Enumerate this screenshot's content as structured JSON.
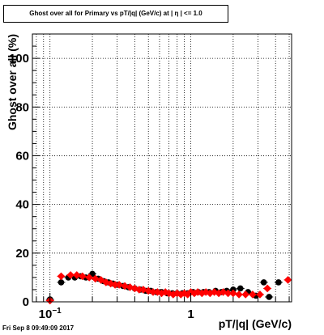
{
  "timestamp": "Fri Sep  8 09:49:09 2017",
  "chart_data": {
    "type": "scatter",
    "title": "Ghost over all for Primary vs pT/|q| (GeV/c) at |  η | <= 1.0",
    "xlabel": "pT/|q| (GeV/c)",
    "ylabel": "Ghost over all (%)",
    "xscale": "log",
    "xlim": [
      0.075,
      5.2
    ],
    "ylim": [
      0,
      110
    ],
    "grid": true,
    "x_ticks": [
      {
        "value": 0.1,
        "base": "10",
        "exp": "−1"
      },
      {
        "value": 1,
        "label": "1"
      }
    ],
    "y_ticks": [
      0,
      20,
      40,
      60,
      80,
      100
    ],
    "series": [
      {
        "color": "#000000",
        "marker": "circle",
        "points": [
          [
            0.1,
            1.0
          ],
          [
            0.12,
            8.0
          ],
          [
            0.135,
            10.0
          ],
          [
            0.15,
            10.0
          ],
          [
            0.165,
            10.5
          ],
          [
            0.18,
            10.0
          ],
          [
            0.2,
            11.5
          ],
          [
            0.22,
            9.5
          ],
          [
            0.24,
            8.5
          ],
          [
            0.26,
            8.0
          ],
          [
            0.28,
            7.5
          ],
          [
            0.3,
            7.0
          ],
          [
            0.33,
            6.5
          ],
          [
            0.36,
            6.0
          ],
          [
            0.4,
            5.5
          ],
          [
            0.44,
            5.0
          ],
          [
            0.48,
            4.5
          ],
          [
            0.52,
            4.5
          ],
          [
            0.57,
            4.0
          ],
          [
            0.62,
            4.0
          ],
          [
            0.68,
            3.5
          ],
          [
            0.74,
            3.5
          ],
          [
            0.8,
            3.5
          ],
          [
            0.87,
            3.5
          ],
          [
            0.95,
            3.5
          ],
          [
            1.04,
            4.0
          ],
          [
            1.13,
            4.0
          ],
          [
            1.23,
            4.0
          ],
          [
            1.35,
            4.0
          ],
          [
            1.5,
            4.5
          ],
          [
            1.65,
            4.0
          ],
          [
            1.8,
            4.5
          ],
          [
            2.0,
            5.0
          ],
          [
            2.25,
            5.5
          ],
          [
            2.55,
            4.0
          ],
          [
            2.9,
            2.5
          ],
          [
            3.3,
            8.0
          ],
          [
            3.6,
            2.0
          ],
          [
            4.2,
            8.0
          ]
        ]
      },
      {
        "color": "#ff0000",
        "marker": "diamond",
        "points": [
          [
            0.1,
            0.5
          ],
          [
            0.12,
            10.5
          ],
          [
            0.14,
            11.0
          ],
          [
            0.155,
            11.0
          ],
          [
            0.17,
            10.5
          ],
          [
            0.19,
            10.0
          ],
          [
            0.21,
            9.5
          ],
          [
            0.23,
            9.0
          ],
          [
            0.25,
            8.0
          ],
          [
            0.27,
            7.5
          ],
          [
            0.29,
            7.0
          ],
          [
            0.31,
            7.0
          ],
          [
            0.34,
            6.5
          ],
          [
            0.37,
            6.0
          ],
          [
            0.4,
            5.5
          ],
          [
            0.43,
            5.0
          ],
          [
            0.46,
            5.0
          ],
          [
            0.5,
            4.5
          ],
          [
            0.54,
            4.0
          ],
          [
            0.58,
            4.0
          ],
          [
            0.62,
            3.5
          ],
          [
            0.66,
            4.0
          ],
          [
            0.7,
            3.5
          ],
          [
            0.75,
            3.0
          ],
          [
            0.8,
            3.5
          ],
          [
            0.85,
            3.0
          ],
          [
            0.9,
            3.5
          ],
          [
            0.95,
            3.0
          ],
          [
            1.0,
            4.0
          ],
          [
            1.06,
            3.5
          ],
          [
            1.12,
            4.0
          ],
          [
            1.2,
            3.5
          ],
          [
            1.28,
            4.0
          ],
          [
            1.37,
            3.5
          ],
          [
            1.47,
            4.0
          ],
          [
            1.58,
            3.5
          ],
          [
            1.7,
            4.0
          ],
          [
            1.84,
            3.5
          ],
          [
            2.0,
            3.5
          ],
          [
            2.2,
            3.0
          ],
          [
            2.45,
            3.0
          ],
          [
            2.75,
            3.0
          ],
          [
            3.1,
            3.0
          ],
          [
            3.5,
            5.5
          ],
          [
            4.9,
            9.0
          ]
        ]
      }
    ]
  }
}
